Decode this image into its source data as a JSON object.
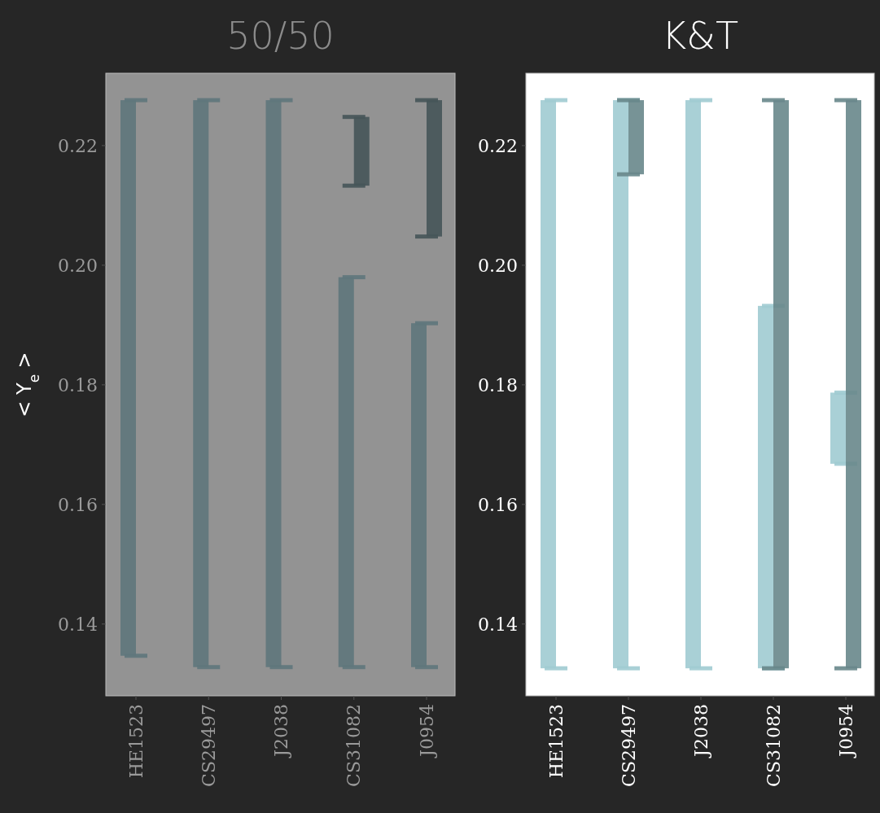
{
  "chart_data": [
    {
      "type": "bar",
      "title": "50/50",
      "ylabel": "< Y$_{e}$ >",
      "categories": [
        "HE1523",
        "CS29497",
        "J2038",
        "CS31082",
        "J0954"
      ],
      "series": [
        {
          "color": "#5f777c",
          "base": [
            0.1347,
            0.1328,
            0.1328,
            0.1328,
            0.1328
          ],
          "values": [
            0.0929,
            0.0948,
            0.0948,
            0.0652,
            0.0575
          ]
        },
        {
          "color": "#465559",
          "base": [
            null,
            null,
            null,
            0.2133,
            0.2048
          ],
          "values": [
            null,
            null,
            null,
            0.0115,
            0.0228
          ]
        }
      ],
      "ylim": [
        0.128,
        0.2321
      ],
      "yticks": [
        0.14,
        0.16,
        0.18,
        {
          "value": 0.2,
          "label": "0.20"
        },
        0.22
      ],
      "grid": false
    },
    {
      "type": "bar",
      "title": "K&T",
      "categories": [
        "HE1523",
        "CS29497",
        "J2038",
        "CS31082",
        "J0954"
      ],
      "series": [
        {
          "color": "#a0cbd2",
          "base": [
            0.1326,
            0.1326,
            0.1326,
            0.1326,
            0.1668
          ],
          "values": [
            0.095,
            0.095,
            0.095,
            0.0606,
            0.0119
          ]
        },
        {
          "color": "#68878b",
          "base": [
            null,
            0.2152,
            null,
            0.1326,
            0.1326
          ],
          "values": [
            null,
            0.0124,
            null,
            0.095,
            0.095
          ]
        }
      ],
      "ylim": [
        0.128,
        0.2321
      ],
      "yticks": [
        0.14,
        0.16,
        0.18,
        {
          "value": 0.2,
          "label": "0.20"
        },
        0.22
      ],
      "grid": false
    }
  ]
}
